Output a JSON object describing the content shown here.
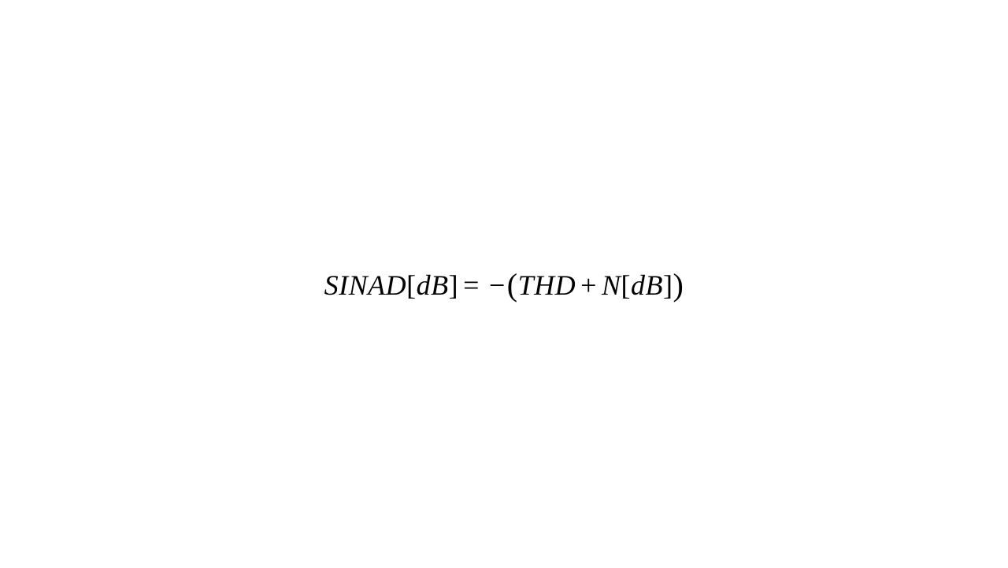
{
  "equation": {
    "type": "math-formula",
    "text_color": "#000000",
    "background_color": "#ffffff",
    "font_family": "Times New Roman",
    "font_size_pt": 27,
    "paren_font_size_pt": 30,
    "tokens": {
      "sinad": "SINAD",
      "db1_open": "[",
      "db1_var": "dB",
      "db1_close": "]",
      "equals": "=",
      "neg": "−",
      "lparen": "(",
      "thd": "THD",
      "plus": "+",
      "nvar": "N",
      "db2_open": "[",
      "db2_var": "dB",
      "db2_close": "]",
      "rparen": ")"
    }
  }
}
